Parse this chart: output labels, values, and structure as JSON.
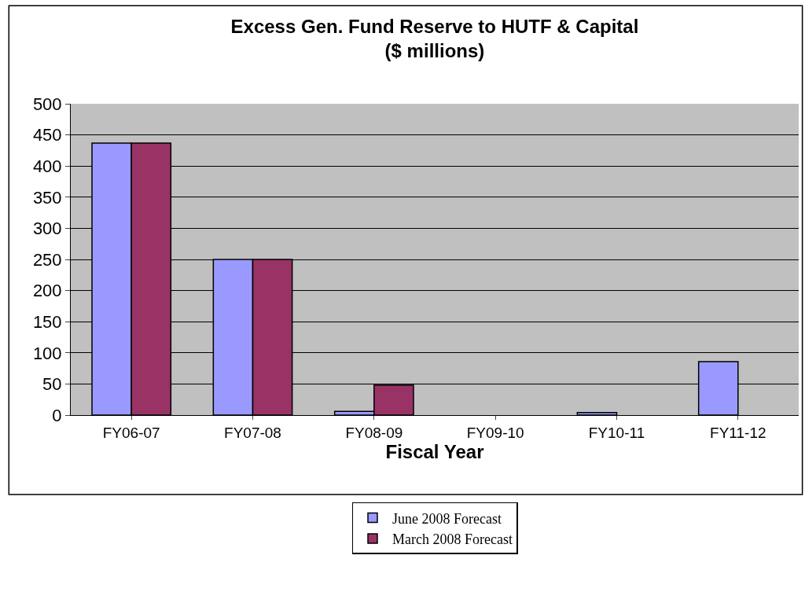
{
  "chart_data": {
    "type": "bar",
    "title": "Excess Gen. Fund Reserve to HUTF & Capital\n($ millions)",
    "xlabel": "Fiscal Year",
    "categories": [
      "FY06-07",
      "FY07-08",
      "FY08-09",
      "FY09-10",
      "FY10-11",
      "FY11-12"
    ],
    "series": [
      {
        "name": "June 2008 Forecast",
        "color": "#9999ff",
        "values": [
          437,
          250,
          6,
          null,
          4,
          86
        ]
      },
      {
        "name": "March 2008 Forecast",
        "color": "#993366",
        "values": [
          437,
          250,
          48,
          null,
          null,
          null
        ]
      }
    ],
    "ylim": [
      0,
      500
    ],
    "yticks": [
      0,
      50,
      100,
      150,
      200,
      250,
      300,
      350,
      400,
      450,
      500
    ],
    "grid": "y",
    "legend": "bottom"
  }
}
